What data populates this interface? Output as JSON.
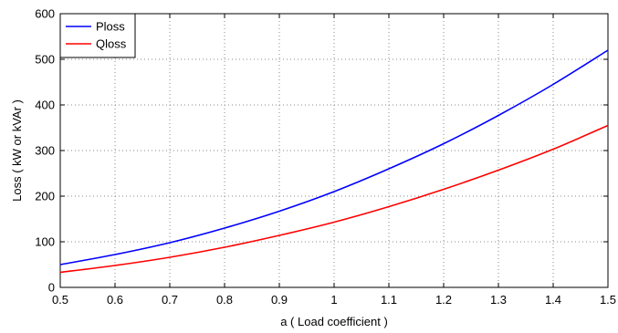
{
  "chart_data": {
    "type": "line",
    "title": "",
    "xlabel": "a ( Load coefficient )",
    "ylabel": "Loss ( kW or kVAr )",
    "xlim": [
      0.5,
      1.5
    ],
    "ylim": [
      0,
      600
    ],
    "xticks": [
      "0.5",
      "0.6",
      "0.7",
      "0.8",
      "0.9",
      "1",
      "1.1",
      "1.2",
      "1.3",
      "1.4",
      "1.5"
    ],
    "yticks": [
      "0",
      "100",
      "200",
      "300",
      "400",
      "500",
      "600"
    ],
    "grid": true,
    "legend_position": "top-left",
    "x": [
      0.5,
      0.6,
      0.7,
      0.8,
      0.9,
      1.0,
      1.1,
      1.2,
      1.3,
      1.4,
      1.5
    ],
    "series": [
      {
        "name": "Ploss",
        "color": "#0000ff",
        "values": [
          50,
          72,
          98,
          130,
          167,
          210,
          260,
          315,
          377,
          445,
          520
        ]
      },
      {
        "name": "Qloss",
        "color": "#ff0000",
        "values": [
          33,
          48,
          66,
          88,
          114,
          143,
          177,
          215,
          257,
          303,
          355
        ]
      }
    ]
  }
}
